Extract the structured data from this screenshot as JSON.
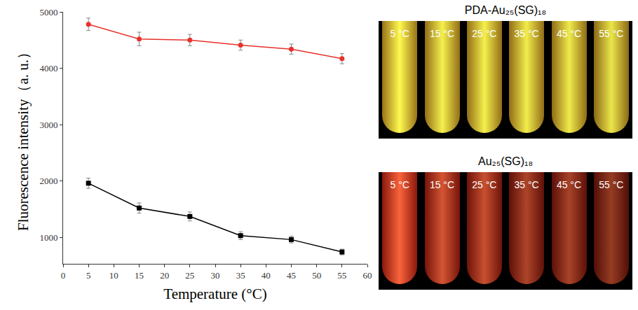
{
  "chart_data": {
    "type": "line",
    "x_label": "Temperature (°C)",
    "y_label": "Fluorescence intensity（a. u.）",
    "x": [
      5,
      15,
      25,
      35,
      45,
      55
    ],
    "series": [
      {
        "color": "#e8312b",
        "marker": "circle",
        "values": [
          4780,
          4520,
          4500,
          4410,
          4340,
          4170
        ],
        "error": [
          110,
          120,
          100,
          90,
          90,
          90
        ]
      },
      {
        "color": "#000000",
        "marker": "square",
        "values": [
          1960,
          1520,
          1370,
          1030,
          960,
          740
        ],
        "error": [
          90,
          90,
          80,
          70,
          60,
          50
        ]
      }
    ],
    "xlim": [
      0,
      60
    ],
    "xticks": [
      0,
      5,
      10,
      15,
      20,
      25,
      30,
      35,
      40,
      45,
      50,
      55,
      60
    ],
    "ylim": [
      530,
      5000
    ],
    "yticks": [
      1000,
      2000,
      3000,
      4000,
      5000
    ],
    "grid": false
  },
  "photos": [
    {
      "title": "PDA-Au₂₅(SG)₁₈",
      "labels": [
        "5 °C",
        "15 °C",
        "25 °C",
        "35 °C",
        "45 °C",
        "55 °C"
      ]
    },
    {
      "title": "Au₂₅(SG)₁₈",
      "labels": [
        "5 °C",
        "15 °C",
        "25 °C",
        "35 °C",
        "45 °C",
        "55 °C"
      ]
    }
  ]
}
